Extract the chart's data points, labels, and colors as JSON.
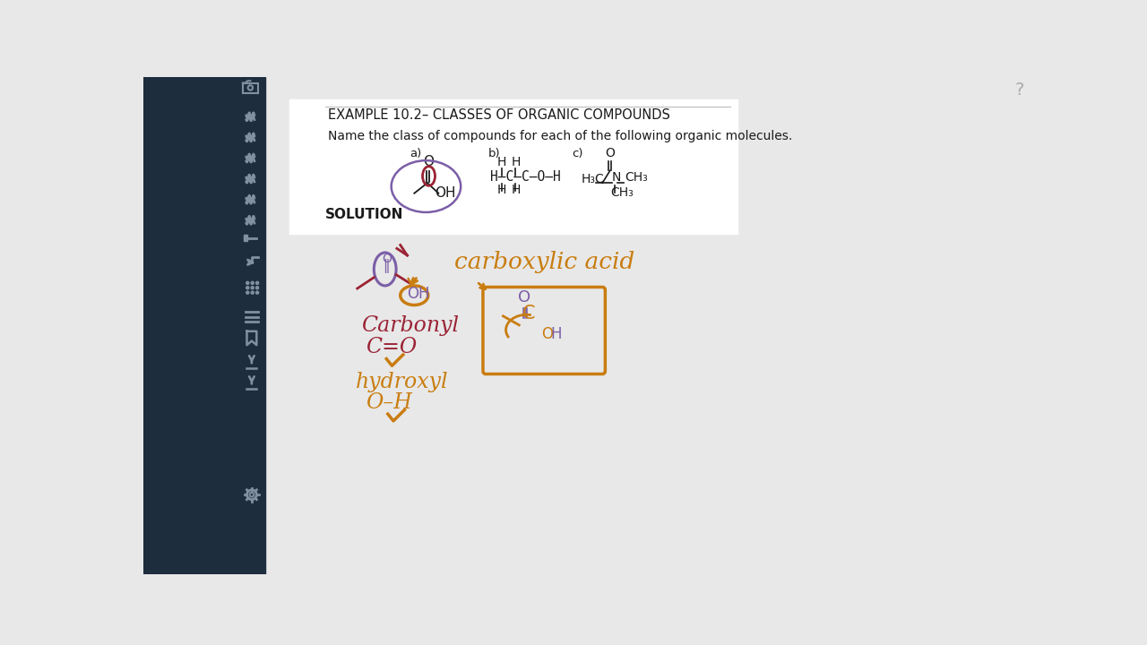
{
  "bg_color": "#e8e8e8",
  "sidebar_color": "#1e2d3d",
  "content_bg": "#ffffff",
  "title_line": "EXAMPLE 10.2– CLASSES OF ORGANIC COMPOUNDS",
  "subtitle": "Name the class of compounds for each of the following organic molecules.",
  "solution_label": "SOLUTION",
  "text_color": "#1a1a1a",
  "purple_color": "#7b5ea7",
  "orange_color": "#c97d10",
  "red_color": "#9b2335",
  "icon_color": "#8090a0"
}
